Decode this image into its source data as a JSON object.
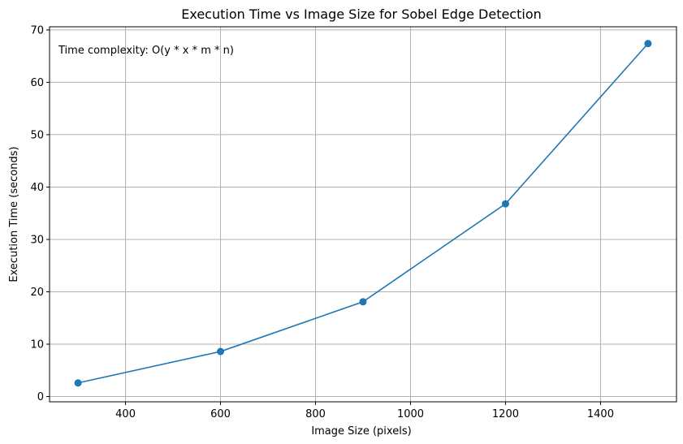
{
  "chart_data": {
    "type": "line",
    "title": "Execution Time vs Image Size for Sobel Edge Detection",
    "xlabel": "Image Size (pixels)",
    "ylabel": "Execution Time (seconds)",
    "annotation": "Time complexity: O(y * x * m * n)",
    "x": [
      300,
      600,
      900,
      1200,
      1500
    ],
    "series": [
      {
        "values": [
          2.6,
          8.6,
          18.1,
          36.8,
          67.4
        ],
        "color": "#1f77b4",
        "marker": "circle"
      }
    ],
    "xlim": [
      240,
      1560
    ],
    "ylim": [
      -1.0,
      70.6
    ],
    "xticks": [
      400,
      600,
      800,
      1000,
      1200,
      1400
    ],
    "yticks": [
      0,
      10,
      20,
      30,
      40,
      50,
      60,
      70
    ],
    "grid": true
  }
}
